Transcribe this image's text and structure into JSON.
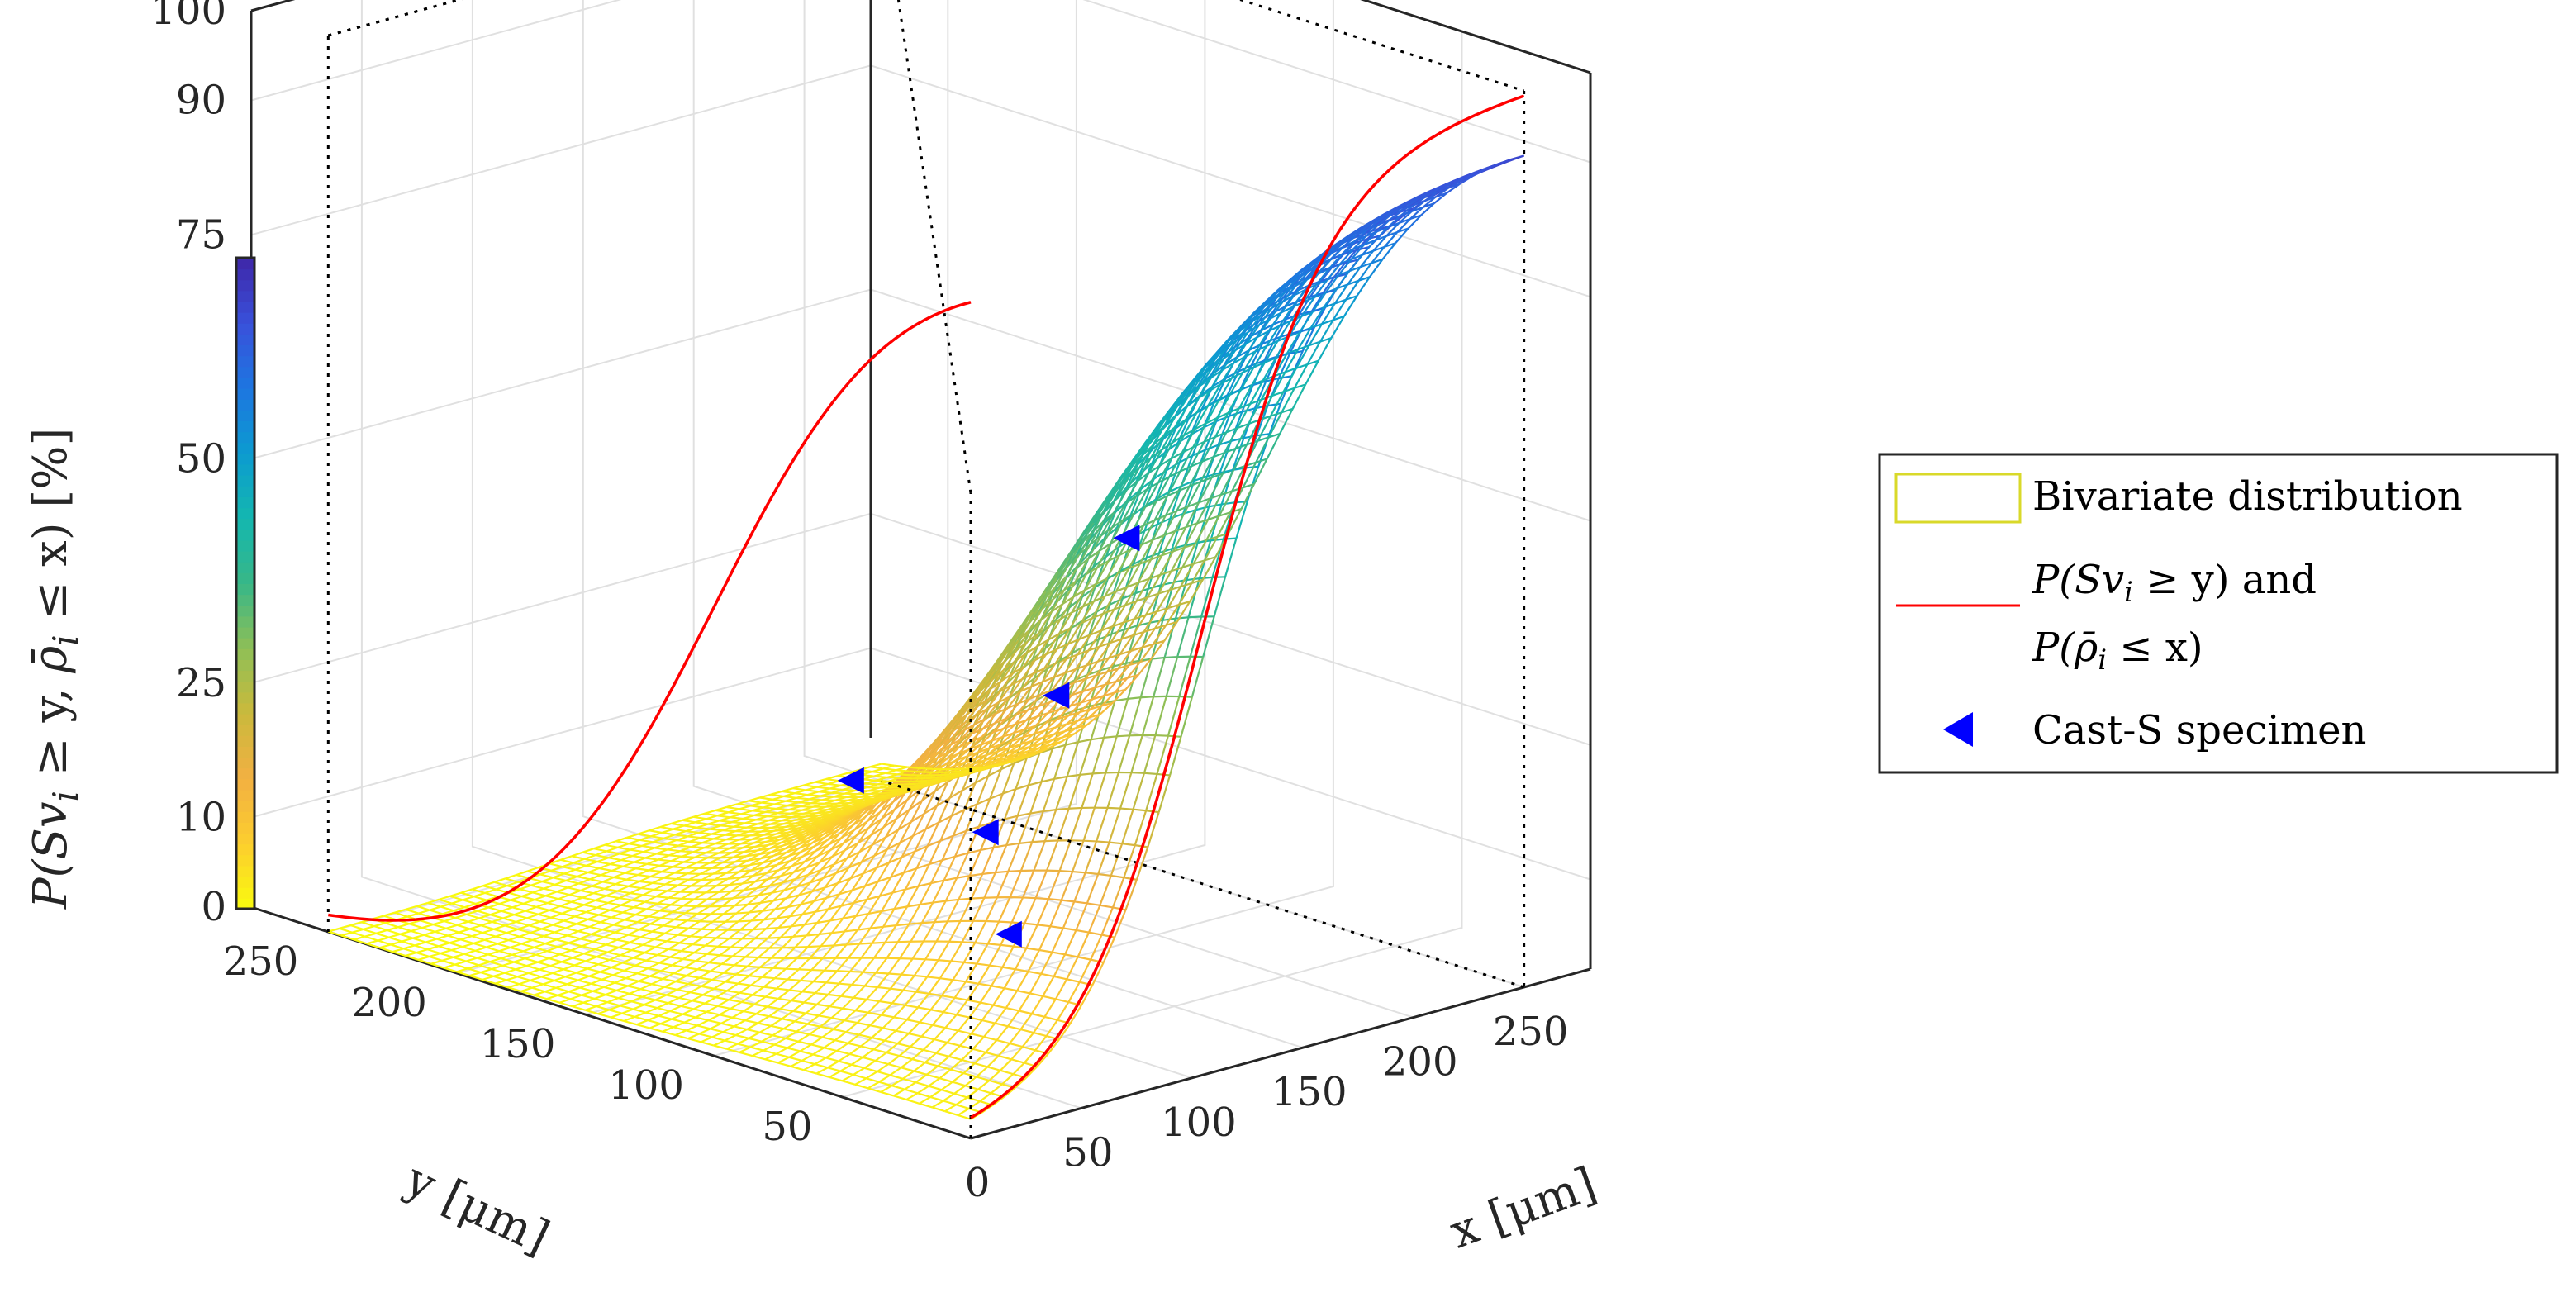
{
  "chart_data": {
    "type": "surface",
    "title": "",
    "xlabel": "x [μm]",
    "ylabel": "y [μm]",
    "zlabel": "P(Sv_i ≥ y, ρ̄_i ≤ x) [%]",
    "zlabel_text": {
      "pre": "P(Sv",
      "sub1": "i",
      "mid": " ≥ y, ",
      "rho": "ρ̄",
      "sub2": "i",
      "post": " ≤ x) [%]"
    },
    "xlim": [
      0,
      280
    ],
    "ylim": [
      0,
      280
    ],
    "zlim": [
      0,
      100
    ],
    "x_ticks": [
      "0",
      "50",
      "100",
      "150",
      "200",
      "250"
    ],
    "x_tick_values": [
      0,
      50,
      100,
      150,
      200,
      250
    ],
    "y_ticks": [
      "50",
      "100",
      "150",
      "200",
      "250"
    ],
    "y_tick_values": [
      50,
      100,
      150,
      200,
      250
    ],
    "z_ticks": [
      "0",
      "10",
      "25",
      "50",
      "75",
      "90",
      "100"
    ],
    "z_tick_values": [
      0,
      10,
      25,
      50,
      75,
      90,
      100
    ],
    "grid": true,
    "colormap": "parula",
    "colorbar_location": "left",
    "legend_location": "right",
    "legend": [
      {
        "kind": "surface",
        "label": "Bivariate distribution",
        "color": "#d9d92a"
      },
      {
        "kind": "line",
        "label_parts": {
          "line1": "P(Sv",
          "line1_sub": "i",
          "line1_post": " ≥ y) and",
          "line2": "P(",
          "line2_rho": "ρ̄",
          "line2_sub": "i",
          "line2_post": " ≤ x)"
        },
        "color": "#ff0000"
      },
      {
        "kind": "marker",
        "label": "Cast-S specimen",
        "color": "#0000ff"
      }
    ],
    "surface": {
      "description": "z = 100 * Fx(x) * Gy(y)",
      "grid_step": 5
    },
    "marginal_x": {
      "name": "P(ρ̄_i ≤ x)",
      "rise_center": 105,
      "rise_width": 28
    },
    "marginal_y": {
      "name": "P(Sv_i ≥ y)",
      "fall_center": 100,
      "fall_width": 38
    },
    "series": [
      {
        "name": "Cast-S specimen",
        "type": "scatter",
        "marker": "triangle-left",
        "points": [
          {
            "x": 140,
            "y": 60,
            "z": 52
          },
          {
            "x": 85,
            "y": 40,
            "z": 40
          },
          {
            "x": 120,
            "y": 150,
            "z": 18
          },
          {
            "x": 110,
            "y": 80,
            "z": 8
          },
          {
            "x": 175,
            "y": 145,
            "z": 9
          }
        ]
      }
    ]
  }
}
